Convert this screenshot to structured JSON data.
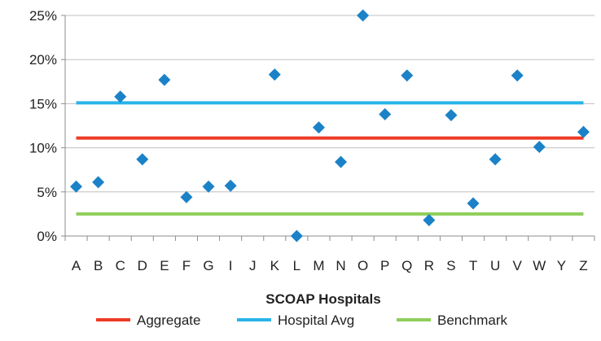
{
  "chart_data": {
    "type": "scatter",
    "title": "",
    "xlabel": "SCOAP Hospitals",
    "ylabel": "",
    "ylim": [
      0,
      25
    ],
    "yticks": [
      "0%",
      "5%",
      "10%",
      "15%",
      "20%",
      "25%"
    ],
    "ytick_values": [
      0,
      5,
      10,
      15,
      20,
      25
    ],
    "grid": "horizontal",
    "legend_position": "bottom",
    "categories": [
      "A",
      "B",
      "C",
      "D",
      "E",
      "F",
      "G",
      "I",
      "J",
      "K",
      "L",
      "M",
      "N",
      "O",
      "P",
      "Q",
      "R",
      "S",
      "T",
      "U",
      "V",
      "W",
      "Y",
      "Z"
    ],
    "series": [
      {
        "name": "",
        "marker": "diamond",
        "color": "#1b82c8",
        "values": [
          5.6,
          6.1,
          15.8,
          8.7,
          17.7,
          4.4,
          5.6,
          5.7,
          null,
          18.3,
          0.0,
          12.3,
          8.4,
          25.0,
          13.8,
          18.2,
          1.8,
          13.7,
          3.7,
          8.7,
          18.2,
          10.1,
          null,
          11.8
        ]
      }
    ],
    "reference_lines": [
      {
        "name": "Aggregate",
        "value": 11.1,
        "color": "#ee3a24"
      },
      {
        "name": "Hospital Avg",
        "value": 15.1,
        "color": "#27b4e8"
      },
      {
        "name": "Benchmark",
        "value": 2.5,
        "color": "#8ece5a"
      }
    ]
  }
}
